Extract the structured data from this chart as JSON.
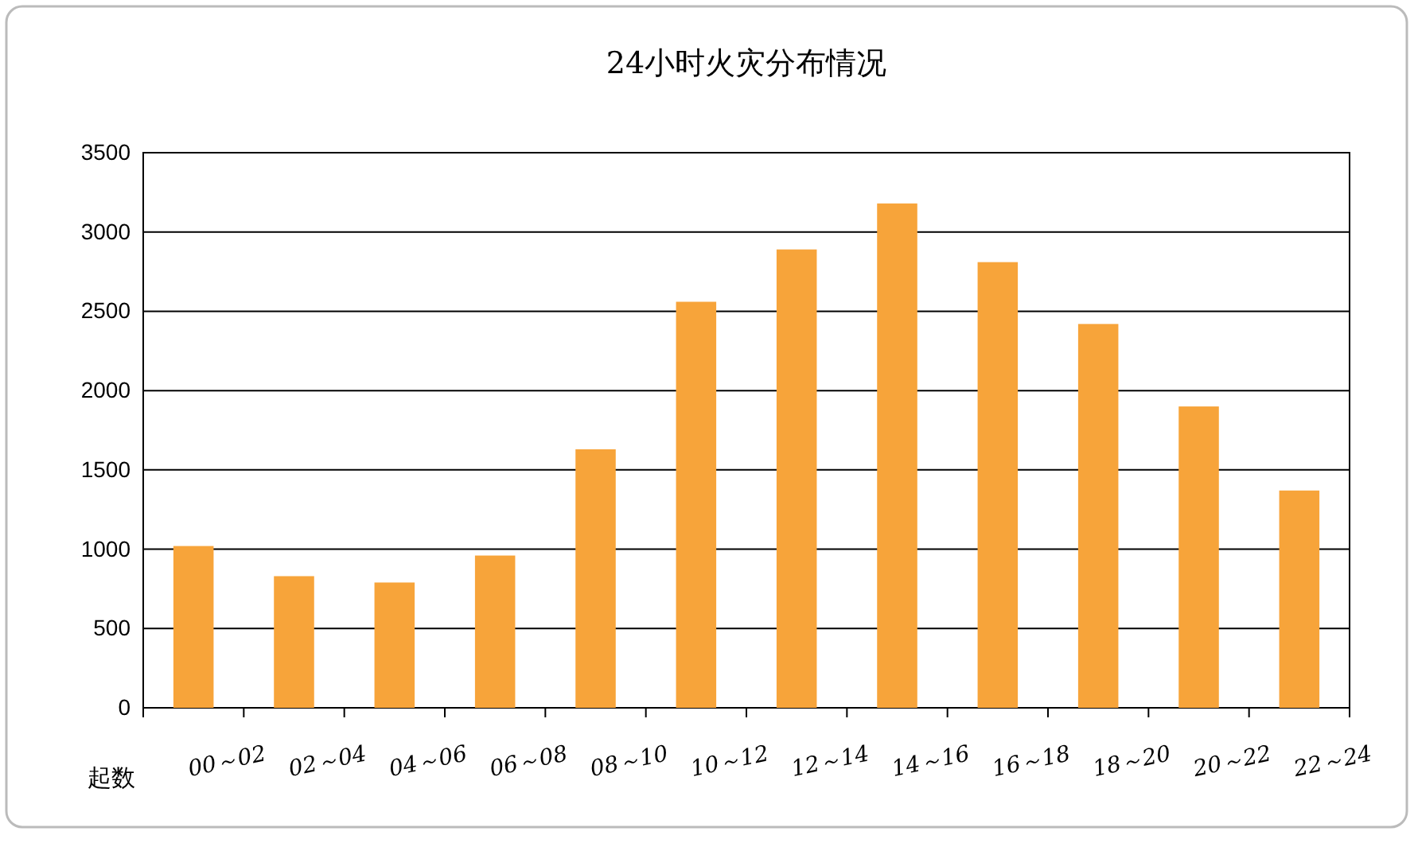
{
  "chart_data": {
    "type": "bar",
    "title": "24小时火灾分布情况",
    "ylabel": "起数",
    "categories": [
      "00～02",
      "02～04",
      "04～06",
      "06～08",
      "08～10",
      "10～12",
      "12～14",
      "14～16",
      "16～18",
      "18～20",
      "20～22",
      "22～24"
    ],
    "values": [
      1020,
      830,
      790,
      960,
      1630,
      2560,
      2890,
      3180,
      2810,
      2420,
      1900,
      1370
    ],
    "color": "#f7a43a",
    "ylim": [
      0,
      3500
    ],
    "yticks": [
      0,
      500,
      1000,
      1500,
      2000,
      2500,
      3000,
      3500
    ],
    "grid": "y"
  }
}
